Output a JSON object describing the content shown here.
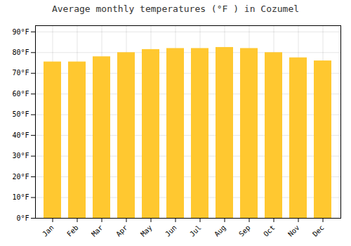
{
  "chart_data": {
    "type": "bar",
    "title": "Average monthly temperatures (°F ) in Cozumel",
    "categories": [
      "Jan",
      "Feb",
      "Mar",
      "Apr",
      "May",
      "Jun",
      "Jul",
      "Aug",
      "Sep",
      "Oct",
      "Nov",
      "Dec"
    ],
    "values": [
      75.5,
      75.5,
      78.0,
      80.0,
      81.5,
      82.0,
      82.0,
      82.5,
      82.0,
      80.0,
      77.5,
      76.0
    ],
    "color": "#FFC830",
    "ylim": [
      0,
      93
    ],
    "yticks": [
      {
        "value": 0,
        "label": "0°F"
      },
      {
        "value": 10,
        "label": "10°F"
      },
      {
        "value": 20,
        "label": "20°F"
      },
      {
        "value": 30,
        "label": "30°F"
      },
      {
        "value": 40,
        "label": "40°F"
      },
      {
        "value": 50,
        "label": "50°F"
      },
      {
        "value": 60,
        "label": "60°F"
      },
      {
        "value": 70,
        "label": "70°F"
      },
      {
        "value": 80,
        "label": "80°F"
      },
      {
        "value": 90,
        "label": "90°F"
      }
    ],
    "grid": true
  }
}
